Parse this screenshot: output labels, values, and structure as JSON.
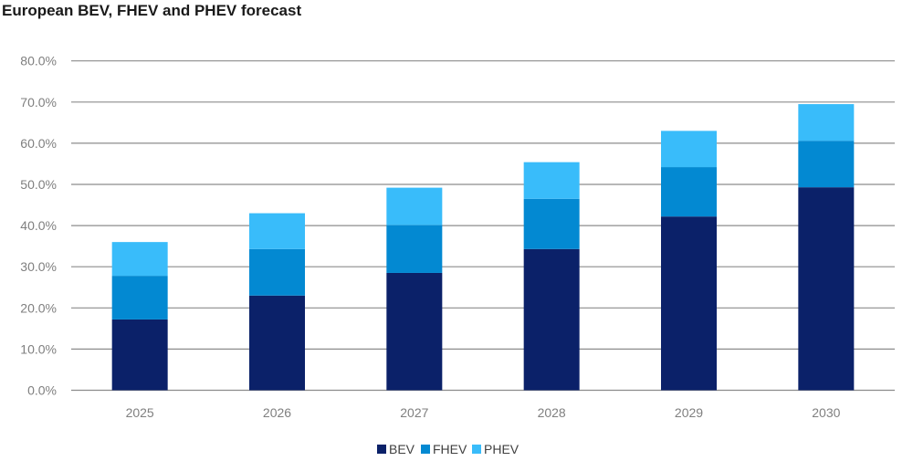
{
  "chart_data": {
    "type": "bar",
    "stacked": true,
    "title": "European BEV, FHEV and PHEV forecast",
    "xlabel": "",
    "ylabel": "",
    "ylim": [
      0,
      80
    ],
    "yticks": [
      "0.0%",
      "10.0%",
      "20.0%",
      "30.0%",
      "40.0%",
      "50.0%",
      "60.0%",
      "70.0%",
      "80.0%"
    ],
    "grid": true,
    "legend_position": "bottom",
    "categories": [
      "2025",
      "2026",
      "2027",
      "2028",
      "2029",
      "2030"
    ],
    "series": [
      {
        "name": "BEV",
        "color": "#0b2169",
        "values": [
          17.2,
          23.0,
          28.5,
          34.3,
          42.2,
          49.3
        ]
      },
      {
        "name": "FHEV",
        "color": "#0389d2",
        "values": [
          10.6,
          11.3,
          11.6,
          12.2,
          12.0,
          11.3
        ]
      },
      {
        "name": "PHEV",
        "color": "#39bcfa",
        "values": [
          8.2,
          8.7,
          9.1,
          8.9,
          8.8,
          8.9
        ]
      }
    ]
  }
}
